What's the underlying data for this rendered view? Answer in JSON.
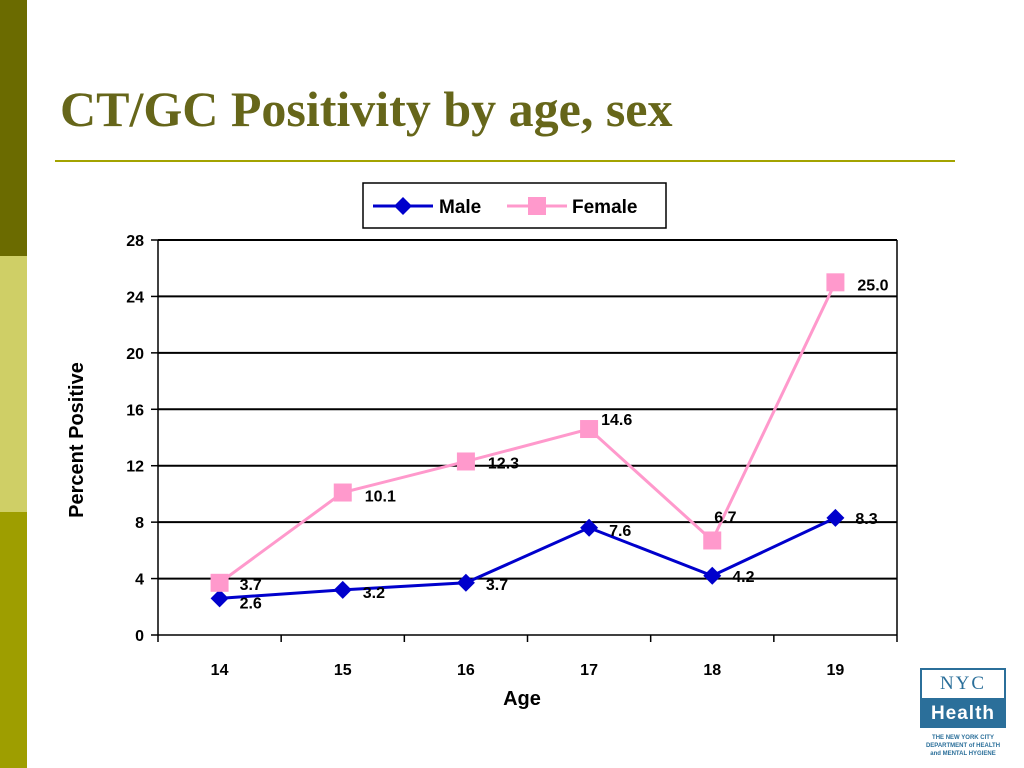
{
  "slide": {
    "title": "CT/GC Positivity by age, sex"
  },
  "logo": {
    "line1": "NYC",
    "line2": "Health",
    "caption1": "THE NEW YORK CITY",
    "caption2": "DEPARTMENT of HEALTH",
    "caption3": "and MENTAL HYGIENE"
  },
  "colors": {
    "title": "#66661a",
    "male": "#0000cc",
    "female": "#ff99cc"
  },
  "chart_data": {
    "type": "line",
    "title": "",
    "xlabel": "Age",
    "ylabel": "Percent Positive",
    "categories": [
      "14",
      "15",
      "16",
      "17",
      "18",
      "19"
    ],
    "ylim": [
      0,
      28
    ],
    "yticks": [
      0,
      4,
      8,
      12,
      16,
      20,
      24,
      28
    ],
    "grid": "horizontal",
    "legend": "top-center",
    "series": [
      {
        "name": "Male",
        "values": [
          2.6,
          3.2,
          3.7,
          7.6,
          4.2,
          8.3
        ],
        "labels": [
          "2.6",
          "3.2",
          "3.7",
          "7.6",
          "4.2",
          "8.3"
        ],
        "marker": "diamond",
        "color": "#0000cc"
      },
      {
        "name": "Female",
        "values": [
          3.7,
          10.1,
          12.3,
          14.6,
          6.7,
          25.0
        ],
        "labels": [
          "3.7",
          "10.1",
          "12.3",
          "14.6",
          "6.7",
          "25.0"
        ],
        "marker": "square",
        "color": "#ff99cc"
      }
    ]
  }
}
